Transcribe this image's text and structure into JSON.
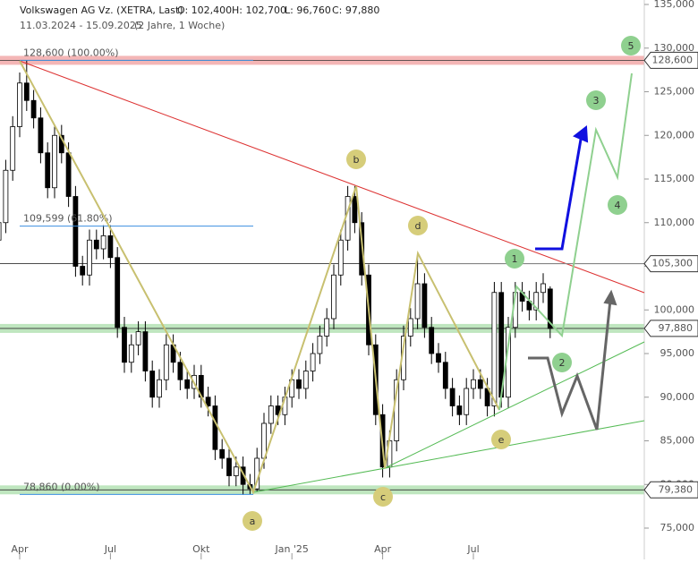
{
  "chart_data": {
    "type": "candlestick",
    "title": "Volkswagen AG Vz. (XETRA, Last)",
    "ohlc_header": [
      "O: 102,400",
      "H: 102,700",
      "L: 96,760",
      "C: 97,880"
    ],
    "subtitle": "11.03.2024 - 15.09.2025",
    "period": "(2 Jahre, 1 Woche)",
    "x": [
      0,
      1,
      2,
      3,
      4,
      5,
      6,
      7,
      8,
      9,
      10,
      11,
      12,
      13,
      14,
      15,
      16,
      17,
      18,
      19,
      20,
      21,
      22,
      23,
      24,
      25,
      26,
      27,
      28,
      29,
      30,
      31,
      32,
      33,
      34,
      35,
      36,
      37,
      38,
      39,
      40,
      41,
      42,
      43,
      44,
      45,
      46,
      47,
      48,
      49,
      50,
      51,
      52,
      53,
      54,
      55,
      56,
      57,
      58,
      59,
      60,
      61,
      62,
      63,
      64,
      65,
      66,
      67,
      68,
      69,
      70,
      71,
      72,
      73,
      74,
      75,
      76,
      77,
      78,
      79
    ],
    "open": [
      108000,
      110000,
      116000,
      121000,
      126000,
      124000,
      122000,
      118000,
      114000,
      120000,
      118000,
      113000,
      105000,
      104000,
      108000,
      107000,
      108500,
      106000,
      98000,
      94000,
      96000,
      97500,
      93000,
      90000,
      92000,
      96000,
      94000,
      92000,
      91000,
      92500,
      90000,
      89000,
      84000,
      83000,
      81000,
      82000,
      80000,
      79500,
      83000,
      87000,
      89000,
      88000,
      90000,
      92000,
      91000,
      93000,
      95000,
      97000,
      99000,
      104000,
      108000,
      113000,
      110000,
      104000,
      96000,
      88000,
      82000,
      85000,
      92000,
      97000,
      99000,
      103000,
      98000,
      95000,
      94000,
      91000,
      89000,
      88000,
      91000,
      92000,
      91000,
      89000,
      102000,
      90000,
      98000,
      102000,
      101000,
      100000,
      102000,
      102400
    ],
    "high": [
      111200,
      117200,
      122200,
      127200,
      128600,
      125200,
      123200,
      119200,
      121200,
      121200,
      119200,
      114200,
      106200,
      109200,
      109200,
      109700,
      109700,
      107200,
      99200,
      97200,
      98700,
      98700,
      94200,
      93200,
      97200,
      97200,
      95200,
      93200,
      93700,
      93700,
      91200,
      90200,
      85200,
      84200,
      83200,
      83200,
      81200,
      84200,
      88200,
      90200,
      90200,
      91200,
      93200,
      93200,
      94200,
      96200,
      98200,
      100200,
      105200,
      109200,
      114200,
      114200,
      111200,
      105200,
      97200,
      89200,
      86200,
      93200,
      98200,
      100200,
      106500,
      104200,
      99200,
      96200,
      95200,
      92200,
      90200,
      92200,
      93200,
      93200,
      92200,
      103200,
      103200,
      99200,
      103200,
      103200,
      102200,
      103200,
      104200,
      102700
    ],
    "low": [
      106800,
      108800,
      114800,
      119800,
      122800,
      120800,
      116800,
      112800,
      112800,
      116800,
      111800,
      103800,
      102800,
      102800,
      105800,
      105800,
      104800,
      96800,
      92800,
      92800,
      94800,
      91800,
      88800,
      88800,
      90800,
      92800,
      90800,
      89800,
      89800,
      88800,
      87800,
      82800,
      81800,
      79800,
      79800,
      78800,
      78860,
      79200,
      81800,
      85800,
      86800,
      86800,
      88800,
      89800,
      89800,
      91800,
      93800,
      95800,
      97800,
      102800,
      106800,
      108800,
      102800,
      94800,
      86800,
      80800,
      80800,
      83800,
      90800,
      95800,
      97800,
      96800,
      93800,
      92800,
      89800,
      87800,
      86800,
      86800,
      89800,
      89800,
      87800,
      87800,
      88800,
      88800,
      96800,
      99800,
      98800,
      98800,
      100800,
      96760
    ],
    "close": [
      110000,
      116000,
      121000,
      126000,
      124000,
      122000,
      118000,
      114000,
      120000,
      118000,
      113000,
      105000,
      104000,
      108000,
      107000,
      108500,
      106000,
      98000,
      94000,
      96000,
      97500,
      93000,
      90000,
      92000,
      96000,
      94000,
      92000,
      91000,
      92500,
      90000,
      89000,
      84000,
      83000,
      81000,
      82000,
      80000,
      79500,
      83000,
      87000,
      89000,
      88000,
      90000,
      92000,
      91000,
      93000,
      95000,
      97000,
      99000,
      104000,
      108000,
      113000,
      110000,
      104000,
      96000,
      88000,
      82000,
      85000,
      92000,
      97000,
      99000,
      103000,
      98000,
      95000,
      94000,
      91000,
      89000,
      88000,
      91000,
      92000,
      91000,
      89000,
      102000,
      90000,
      98000,
      102000,
      101000,
      100000,
      102000,
      103000,
      97880
    ],
    "xlim": [
      0,
      94
    ],
    "xticks": [
      {
        "value": 3,
        "label": "Apr"
      },
      {
        "value": 16,
        "label": "Jul"
      },
      {
        "value": 29,
        "label": "Okt"
      },
      {
        "value": 42,
        "label": "Jan '25"
      },
      {
        "value": 55,
        "label": "Apr"
      },
      {
        "value": 68,
        "label": "Jul"
      }
    ],
    "ylim": [
      75000,
      135000
    ],
    "yticks": [
      {
        "value": 75000,
        "label": "75,000"
      },
      {
        "value": 80000,
        "label": "80,000"
      },
      {
        "value": 85000,
        "label": "85,000"
      },
      {
        "value": 90000,
        "label": "90,000"
      },
      {
        "value": 95000,
        "label": "95,000"
      },
      {
        "value": 100000,
        "label": "100,000"
      },
      {
        "value": 105000,
        "label": "105,000"
      },
      {
        "value": 110000,
        "label": "110,000"
      },
      {
        "value": 115000,
        "label": "115,000"
      },
      {
        "value": 120000,
        "label": "120,000"
      },
      {
        "value": 125000,
        "label": "125,000"
      },
      {
        "value": 130000,
        "label": "130,000"
      },
      {
        "value": 135000,
        "label": "135,000"
      }
    ],
    "price_tags": [
      {
        "value": 128600,
        "label": "128,600",
        "band": "#f4b6b6"
      },
      {
        "value": 105300,
        "label": "105,300"
      },
      {
        "value": 97880,
        "label": "97,880",
        "band": "#bfe6bf"
      },
      {
        "value": 79380,
        "label": "79,380",
        "band": "#bfe6bf"
      }
    ],
    "fib_levels": [
      {
        "value": 128600,
        "label": "128,600 (100.00%)"
      },
      {
        "value": 109599,
        "label": "109,599 (61.80%)"
      },
      {
        "value": 78860,
        "label": "78,860 (0.00%)"
      }
    ],
    "waves": [
      "a",
      "b",
      "c",
      "d",
      "e",
      "1",
      "2",
      "3",
      "4",
      "5"
    ]
  }
}
